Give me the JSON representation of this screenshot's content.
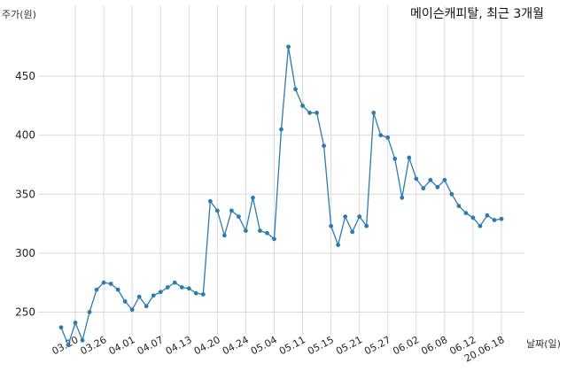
{
  "chart_data": {
    "type": "line",
    "title": "메이슨캐피탈, 최근 3개월",
    "ylabel": "주가(원)",
    "xlabel": "날짜(일)",
    "ylim": [
      210,
      480
    ],
    "yticks": [
      250,
      300,
      350,
      400,
      450
    ],
    "grid": true,
    "x_tick_labels": [
      "03.20",
      "03.26",
      "04.01",
      "04.07",
      "04.13",
      "04.20",
      "04.24",
      "05.04",
      "05.11",
      "05.15",
      "05.21",
      "05.27",
      "06.02",
      "06.08",
      "06.12",
      "20.06.18"
    ],
    "x_tick_indices": [
      2,
      6,
      10,
      14,
      18,
      22,
      26,
      30,
      34,
      38,
      42,
      46,
      50,
      54,
      58,
      62
    ],
    "series": [
      {
        "color": "#2e7bb0",
        "values": [
          237,
          222,
          241,
          226,
          250,
          269,
          275,
          274,
          269,
          259,
          252,
          263,
          255,
          264,
          267,
          271,
          275,
          271,
          270,
          266,
          265,
          344,
          336,
          315,
          336,
          331,
          319,
          347,
          319,
          317,
          312,
          405,
          475,
          439,
          425,
          419,
          419,
          391,
          323,
          307,
          331,
          318,
          331,
          323,
          419,
          400,
          398,
          380,
          347,
          381,
          363,
          355,
          362,
          356,
          362,
          350,
          340,
          334,
          330,
          323,
          332,
          328,
          329
        ]
      }
    ]
  }
}
